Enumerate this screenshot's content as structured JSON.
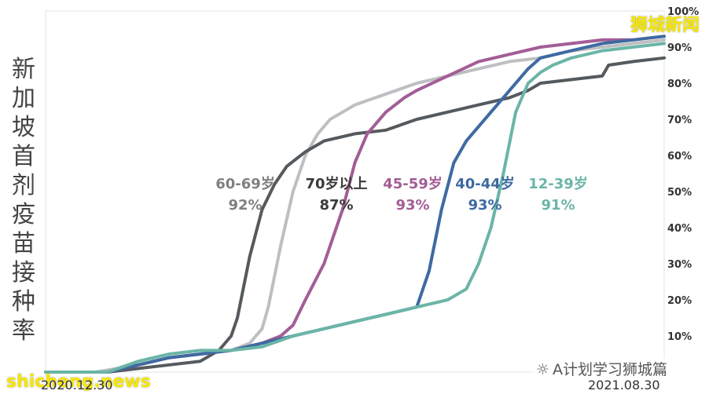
{
  "title_vertical": [
    "新",
    "加",
    "坡",
    "首",
    "剂",
    "疫",
    "苗",
    "接",
    "种",
    "率"
  ],
  "watermarks": {
    "top_right": "狮城新闻",
    "bottom_left": "shicheng.news",
    "wechat": "A计划学习狮城篇"
  },
  "chart_data": {
    "type": "line",
    "title": "新加坡首剂疫苗接种率",
    "x_start": "2020.12.30",
    "x_end": "2021.08.30",
    "x_tick_labels": [
      "2020.12.30",
      "2021.08.30"
    ],
    "y_ticks": [
      "10%",
      "20%",
      "30%",
      "40%",
      "50%",
      "60%",
      "70%",
      "80%",
      "90%",
      "100%"
    ],
    "ylim": [
      0,
      100
    ],
    "y_axis_side": "right",
    "grid": false,
    "series": [
      {
        "name": "60-69岁",
        "final_label": "92%",
        "color": "#bdbfc2",
        "label_color": "#808080",
        "t": [
          0,
          0.08,
          0.15,
          0.2,
          0.25,
          0.3,
          0.33,
          0.35,
          0.36,
          0.38,
          0.4,
          0.42,
          0.44,
          0.46,
          0.48,
          0.5,
          0.55,
          0.6,
          0.65,
          0.7,
          0.75,
          0.8,
          0.85,
          0.9,
          0.95,
          1.0
        ],
        "v": [
          0,
          0,
          2,
          4,
          5,
          6,
          8,
          12,
          18,
          35,
          50,
          60,
          66,
          70,
          72,
          74,
          77,
          80,
          82,
          84,
          86,
          87,
          89,
          90,
          91,
          92
        ]
      },
      {
        "name": "70岁以上",
        "final_label": "87%",
        "color": "#555a5e",
        "label_color": "#3a3a3a",
        "t": [
          0,
          0.1,
          0.15,
          0.2,
          0.25,
          0.28,
          0.3,
          0.31,
          0.33,
          0.35,
          0.37,
          0.39,
          0.42,
          0.45,
          0.5,
          0.55,
          0.6,
          0.65,
          0.7,
          0.75,
          0.78,
          0.8,
          0.85,
          0.9,
          0.91,
          0.95,
          1.0
        ],
        "v": [
          0,
          0,
          1,
          2,
          3,
          6,
          10,
          15,
          32,
          45,
          52,
          57,
          61,
          64,
          66,
          67,
          70,
          72,
          74,
          76,
          78,
          80,
          81,
          82,
          85,
          86,
          87
        ]
      },
      {
        "name": "45-59岁",
        "final_label": "93%",
        "color": "#a35d96",
        "label_color": "#a35d96",
        "t": [
          0,
          0.1,
          0.15,
          0.2,
          0.25,
          0.3,
          0.35,
          0.38,
          0.4,
          0.42,
          0.45,
          0.48,
          0.5,
          0.52,
          0.55,
          0.58,
          0.6,
          0.65,
          0.7,
          0.75,
          0.8,
          0.85,
          0.9,
          0.95,
          1.0
        ],
        "v": [
          0,
          0,
          2,
          4,
          5,
          6,
          8,
          10,
          13,
          20,
          30,
          45,
          58,
          66,
          72,
          76,
          78,
          82,
          86,
          88,
          90,
          91,
          92,
          92,
          93
        ]
      },
      {
        "name": "40-44岁",
        "final_label": "93%",
        "color": "#3e6aa1",
        "label_color": "#3e6aa1",
        "t": [
          0,
          0.1,
          0.15,
          0.2,
          0.25,
          0.3,
          0.35,
          0.4,
          0.45,
          0.5,
          0.55,
          0.6,
          0.62,
          0.64,
          0.66,
          0.68,
          0.7,
          0.72,
          0.75,
          0.78,
          0.8,
          0.85,
          0.9,
          0.95,
          1.0
        ],
        "v": [
          0,
          0,
          2,
          4,
          5,
          6,
          8,
          10,
          12,
          14,
          16,
          18,
          28,
          45,
          58,
          64,
          68,
          72,
          78,
          84,
          87,
          89,
          91,
          92,
          93
        ]
      },
      {
        "name": "12-39岁",
        "final_label": "91%",
        "color": "#6bb5a7",
        "label_color": "#6bb5a7",
        "t": [
          0,
          0.1,
          0.15,
          0.2,
          0.25,
          0.3,
          0.35,
          0.4,
          0.45,
          0.5,
          0.55,
          0.6,
          0.65,
          0.68,
          0.7,
          0.72,
          0.74,
          0.76,
          0.78,
          0.8,
          0.82,
          0.85,
          0.9,
          0.95,
          1.0
        ],
        "v": [
          0,
          0,
          3,
          5,
          6,
          6,
          7,
          10,
          12,
          14,
          16,
          18,
          20,
          23,
          30,
          40,
          55,
          72,
          80,
          83,
          85,
          87,
          89,
          90,
          91
        ]
      }
    ]
  }
}
